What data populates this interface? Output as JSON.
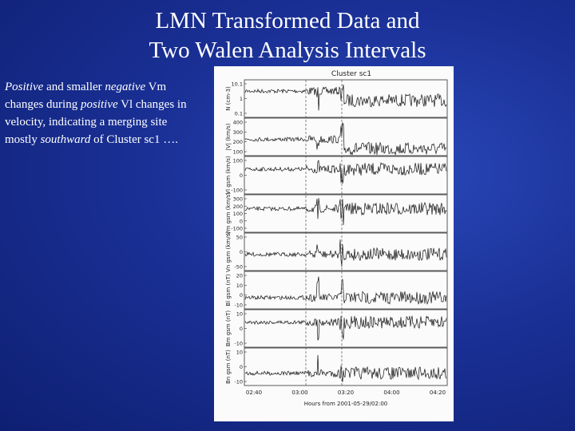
{
  "title": {
    "lines": [
      "LMN Transformed Data and",
      "Two Walen Analysis Intervals"
    ]
  },
  "body": {
    "lines": [
      [
        {
          "text": "Positive",
          "italic": true
        },
        {
          "text": " and smaller "
        },
        {
          "text": "negative",
          "italic": true
        },
        {
          "text": " Vm"
        }
      ],
      [
        {
          "text": "changes during "
        },
        {
          "text": "positive",
          "italic": true
        },
        {
          "text": " Vl changes in"
        }
      ],
      [
        {
          "text": "velocity, indicating a merging site"
        }
      ],
      [
        {
          "text": "mostly "
        },
        {
          "text": "southward",
          "italic": true
        },
        {
          "text": " of Cluster sc1 …."
        }
      ]
    ]
  },
  "figure": {
    "title": "Cluster sc1",
    "panels": [
      {
        "label": "N (cm-3)",
        "ticks": [
          "10.1",
          "1",
          "0.1"
        ]
      },
      {
        "label": "|V| (km/s)",
        "ticks": [
          "400",
          "300",
          "200",
          "100"
        ]
      },
      {
        "label": "Vl gsm (km/s)",
        "ticks": [
          "100",
          "0",
          "-100"
        ]
      },
      {
        "label": "Vm gsm (km/s)",
        "ticks": [
          "300",
          "200",
          "100",
          "0",
          "-100"
        ]
      },
      {
        "label": "Vn gsm (km/s)",
        "ticks": [
          "50",
          "0",
          "-50"
        ]
      },
      {
        "label": "Bl gsm (nT)",
        "ticks": [
          "20",
          "10",
          "0",
          "-10"
        ]
      },
      {
        "label": "Bm gsm (nT)",
        "ticks": [
          "10",
          "0",
          "-10"
        ]
      },
      {
        "label": "Bn gsm (nT)",
        "ticks": [
          "10",
          "0",
          "-10"
        ]
      }
    ],
    "time_labels": [
      "02:40",
      "03:00",
      "03:20",
      "04:00",
      "04:20"
    ],
    "x_label": "Hours from 2001-05-29/02:00"
  }
}
